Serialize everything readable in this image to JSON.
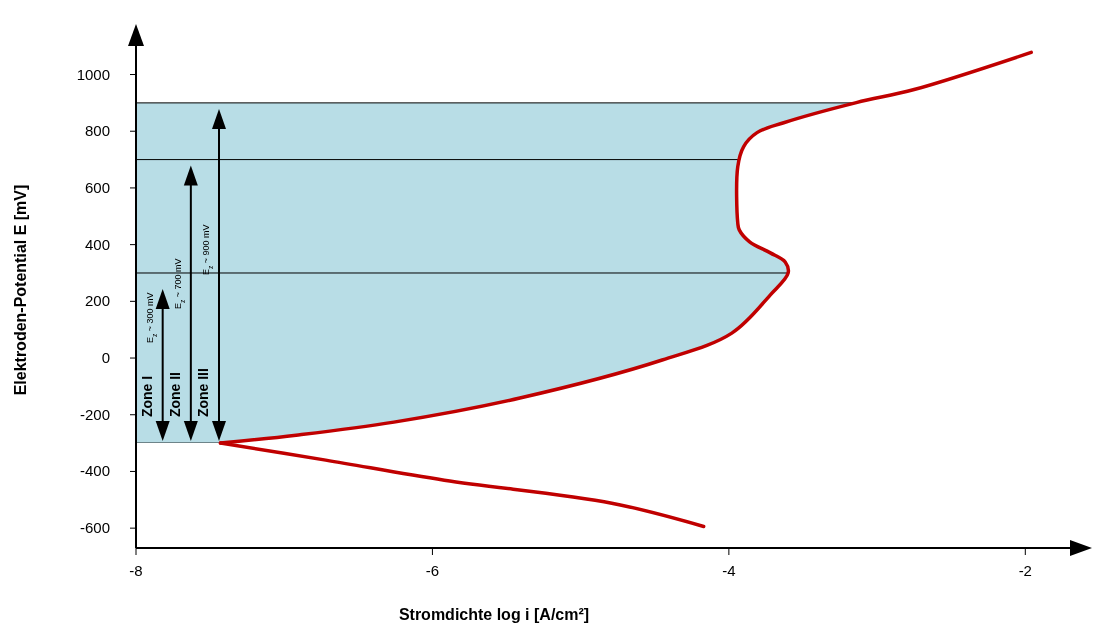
{
  "chart_data": {
    "type": "line",
    "xlabel": "Stromdichte log i [A/cm²]",
    "ylabel": "Elektroden-Potential E [mV]",
    "xlim": [
      -8,
      -1.55
    ],
    "ylim": [
      -670,
      1150
    ],
    "xticks": [
      -8,
      -6,
      -4,
      -2
    ],
    "yticks": [
      -600,
      -400,
      -200,
      0,
      200,
      400,
      600,
      800,
      1000
    ],
    "grid": false,
    "marker": "none",
    "line_style": "solid",
    "series": [
      {
        "color": "#c00000",
        "x": [
          -7.43,
          -6.72,
          -5.92,
          -4.79,
          -4.17
        ],
        "values": [
          -300,
          -360,
          -431,
          -512,
          -594
        ]
      },
      {
        "color": "#c00000",
        "x": [
          -7.43,
          -6.92,
          -6.26,
          -5.41,
          -4.45,
          -3.98,
          -3.72,
          -3.6,
          -3.62,
          -3.72,
          -3.86,
          -3.93,
          -3.94,
          -3.94,
          -3.9,
          -3.81,
          -3.63,
          -3.14,
          -2.75,
          -1.96
        ],
        "values": [
          -300,
          -272,
          -226,
          -141,
          -7,
          88,
          223,
          300,
          339,
          371,
          410,
          452,
          477,
          675,
          746,
          795,
          830,
          901,
          947,
          1078
        ]
      }
    ],
    "bands": [
      {
        "axis": "y",
        "from": -300,
        "to": 900,
        "color": "#b8dde6"
      }
    ],
    "ref_lines": [
      {
        "axis": "y",
        "value": -300,
        "color": "#000000"
      },
      {
        "axis": "y",
        "value": 300,
        "color": "#000000"
      },
      {
        "axis": "y",
        "value": 700,
        "color": "#000000"
      },
      {
        "axis": "y",
        "value": 900,
        "color": "#000000"
      }
    ],
    "annotations": [
      "Zone I",
      "E$_{z}$ ~ 300 mV",
      "Zone II",
      "E$_{z}$ ~ 700 mV",
      "Zone III",
      "E$_{z}$ ~ 900 mV"
    ]
  }
}
